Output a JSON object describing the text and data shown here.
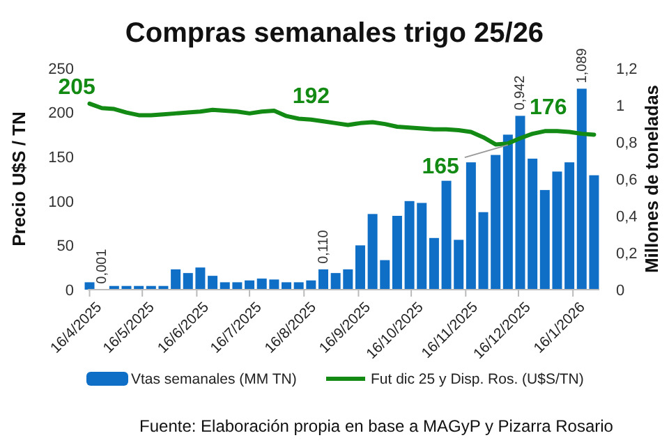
{
  "chart_data": {
    "type": "bar",
    "title": "Compras semanales trigo 25/26",
    "ylabel": "Precio U$S / TN",
    "y2label": "Millones de toneladas",
    "x": [
      "2025-04-16",
      "2025-04-23",
      "2025-04-30",
      "2025-05-07",
      "2025-05-14",
      "2025-05-21",
      "2025-05-28",
      "2025-06-04",
      "2025-06-11",
      "2025-06-18",
      "2025-06-25",
      "2025-07-02",
      "2025-07-09",
      "2025-07-16",
      "2025-07-23",
      "2025-07-30",
      "2025-08-06",
      "2025-08-13",
      "2025-08-20",
      "2025-08-27",
      "2025-09-03",
      "2025-09-10",
      "2025-09-17",
      "2025-09-24",
      "2025-10-01",
      "2025-10-08",
      "2025-10-15",
      "2025-10-22",
      "2025-10-29",
      "2025-11-05",
      "2025-11-12",
      "2025-11-19",
      "2025-11-26",
      "2025-12-03",
      "2025-12-10",
      "2025-12-17",
      "2025-12-24",
      "2025-12-31",
      "2026-01-07",
      "2026-01-14",
      "2026-01-21",
      "2026-01-28"
    ],
    "series": [
      {
        "name": "Vtas semanales (MM TN)",
        "axis": "y2",
        "color": "#0f6fc6",
        "values": [
          0.04,
          0.001,
          0.02,
          0.02,
          0.02,
          0.02,
          0.02,
          0.11,
          0.09,
          0.12,
          0.075,
          0.04,
          0.04,
          0.05,
          0.06,
          0.055,
          0.04,
          0.04,
          0.05,
          0.11,
          0.09,
          0.11,
          0.24,
          0.41,
          0.16,
          0.4,
          0.48,
          0.47,
          0.28,
          0.59,
          0.27,
          0.69,
          0.42,
          0.73,
          0.84,
          0.942,
          0.71,
          0.54,
          0.64,
          0.69,
          1.089,
          0.62
        ],
        "value_labels": [
          null,
          "0,001",
          null,
          null,
          null,
          null,
          null,
          null,
          null,
          null,
          null,
          null,
          null,
          null,
          null,
          null,
          null,
          null,
          null,
          "0,110",
          null,
          null,
          null,
          null,
          null,
          null,
          null,
          null,
          null,
          null,
          null,
          null,
          null,
          null,
          null,
          "0,942",
          null,
          null,
          null,
          null,
          "1,089",
          null
        ]
      },
      {
        "name": "Fut dic 25 y Disp. Ros. (U$S/TN)",
        "type": "line",
        "color": "#138a13",
        "values": [
          210,
          205,
          204,
          200,
          197,
          197,
          198,
          199,
          200,
          201,
          203,
          202,
          201,
          199,
          201,
          202,
          196,
          193,
          192,
          190,
          188,
          186,
          188,
          189,
          187,
          184,
          183,
          182,
          181,
          181,
          180,
          178,
          172,
          164,
          165,
          171,
          176,
          179,
          179,
          178,
          176,
          175
        ]
      }
    ],
    "xlim": [
      "2025-04-15",
      "2026-01-31"
    ],
    "xticks": [
      {
        "value": "2025-04-16",
        "label": "16/4/2025"
      },
      {
        "value": "2025-05-16",
        "label": "16/5/2025"
      },
      {
        "value": "2025-06-16",
        "label": "16/6/2025"
      },
      {
        "value": "2025-07-16",
        "label": "16/7/2025"
      },
      {
        "value": "2025-08-16",
        "label": "16/8/2025"
      },
      {
        "value": "2025-09-16",
        "label": "16/9/2025"
      },
      {
        "value": "2025-10-16",
        "label": "16/10/2025"
      },
      {
        "value": "2025-11-16",
        "label": "16/11/2025"
      },
      {
        "value": "2025-12-16",
        "label": "16/12/2025"
      },
      {
        "value": "2026-01-16",
        "label": "16/1/2026"
      }
    ],
    "ylim": [
      0,
      250
    ],
    "yticks": [
      0,
      50,
      100,
      150,
      200,
      250
    ],
    "y2lim": [
      0,
      1.2
    ],
    "y2ticks": [
      0,
      {
        "value": 0.2,
        "label": "0,2"
      },
      {
        "value": 0.4,
        "label": "0,4"
      },
      {
        "value": 0.6,
        "label": "0,6"
      },
      {
        "value": 0.8,
        "label": "0,8"
      },
      1,
      {
        "value": 1.2,
        "label": "1,2"
      }
    ],
    "annotations": [
      {
        "text": "205",
        "x": "2025-04-23",
        "y": 205
      },
      {
        "text": "192",
        "x": "2025-08-20",
        "y": 192
      },
      {
        "text": "165",
        "x": "2025-12-10",
        "y": 165
      },
      {
        "text": "176",
        "x": "2026-01-21",
        "y": 176
      },
      "Fuente: Elaboración propia en base a MAGyP y Pizarra Rosario"
    ],
    "legend": "bottom"
  }
}
